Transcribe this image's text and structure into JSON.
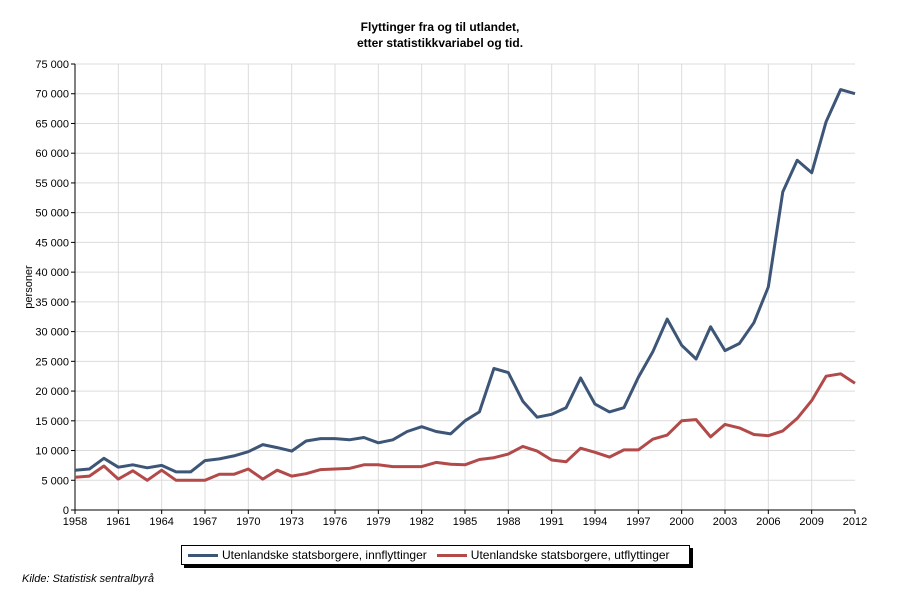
{
  "chart_data": {
    "type": "line",
    "title": [
      "Flyttinger fra og til utlandet,",
      "etter statistikkvariabel og tid."
    ],
    "xlabel": "",
    "ylabel": "personer",
    "xlim": [
      1958,
      2012
    ],
    "ylim": [
      0,
      75000
    ],
    "grid": true,
    "x_ticks": [
      "1958",
      "1961",
      "1964",
      "1967",
      "1970",
      "1973",
      "1976",
      "1979",
      "1982",
      "1985",
      "1988",
      "1991",
      "1994",
      "1997",
      "2000",
      "2003",
      "2006",
      "2009",
      "2012"
    ],
    "y_ticks": [
      0,
      5000,
      10000,
      15000,
      20000,
      25000,
      30000,
      35000,
      40000,
      45000,
      50000,
      55000,
      60000,
      65000,
      70000,
      75000
    ],
    "y_tick_labels": [
      "0",
      "5 000",
      "10 000",
      "15 000",
      "20 000",
      "25 000",
      "30 000",
      "35 000",
      "40 000",
      "45 000",
      "50 000",
      "55 000",
      "60 000",
      "65 000",
      "70 000",
      "75 000"
    ],
    "x": [
      1958,
      1959,
      1960,
      1961,
      1962,
      1963,
      1964,
      1965,
      1966,
      1967,
      1968,
      1969,
      1970,
      1971,
      1972,
      1973,
      1974,
      1975,
      1976,
      1977,
      1978,
      1979,
      1980,
      1981,
      1982,
      1983,
      1984,
      1985,
      1986,
      1987,
      1988,
      1989,
      1990,
      1991,
      1992,
      1993,
      1994,
      1995,
      1996,
      1997,
      1998,
      1999,
      2000,
      2001,
      2002,
      2003,
      2004,
      2005,
      2006,
      2007,
      2008,
      2009,
      2010,
      2011,
      2012
    ],
    "series": [
      {
        "name": "Utenlandske statsborgere, innflyttinger",
        "color": "#3d5677",
        "values": [
          6700,
          6900,
          8700,
          7200,
          7600,
          7100,
          7500,
          6400,
          6400,
          8300,
          8600,
          9100,
          9800,
          11000,
          10500,
          9900,
          11600,
          12000,
          12000,
          11800,
          12200,
          11300,
          11800,
          13200,
          14000,
          13200,
          12800,
          15000,
          16500,
          23800,
          23100,
          18300,
          15600,
          16100,
          17200,
          22200,
          17800,
          16500,
          17200,
          22300,
          26600,
          32100,
          27700,
          25400,
          30800,
          26800,
          28000,
          31500,
          37500,
          53500,
          58800,
          56700,
          65300,
          70700,
          70000
        ]
      },
      {
        "name": "Utenlandske statsborgere, utflyttinger",
        "color": "#b24a4a",
        "values": [
          5500,
          5700,
          7400,
          5200,
          6600,
          5000,
          6700,
          5000,
          5000,
          5000,
          6000,
          6000,
          6900,
          5200,
          6700,
          5700,
          6100,
          6800,
          6900,
          7000,
          7600,
          7600,
          7300,
          7300,
          7300,
          8000,
          7700,
          7600,
          8500,
          8800,
          9400,
          10700,
          9900,
          8400,
          8100,
          10400,
          9700,
          8900,
          10100,
          10100,
          11900,
          12600,
          15000,
          15200,
          12300,
          14400,
          13800,
          12700,
          12500,
          13300,
          15400,
          18400,
          22500,
          22900,
          21300
        ]
      }
    ],
    "legend_position": "bottom"
  },
  "source": "Kilde: Statistisk sentralbyrå"
}
